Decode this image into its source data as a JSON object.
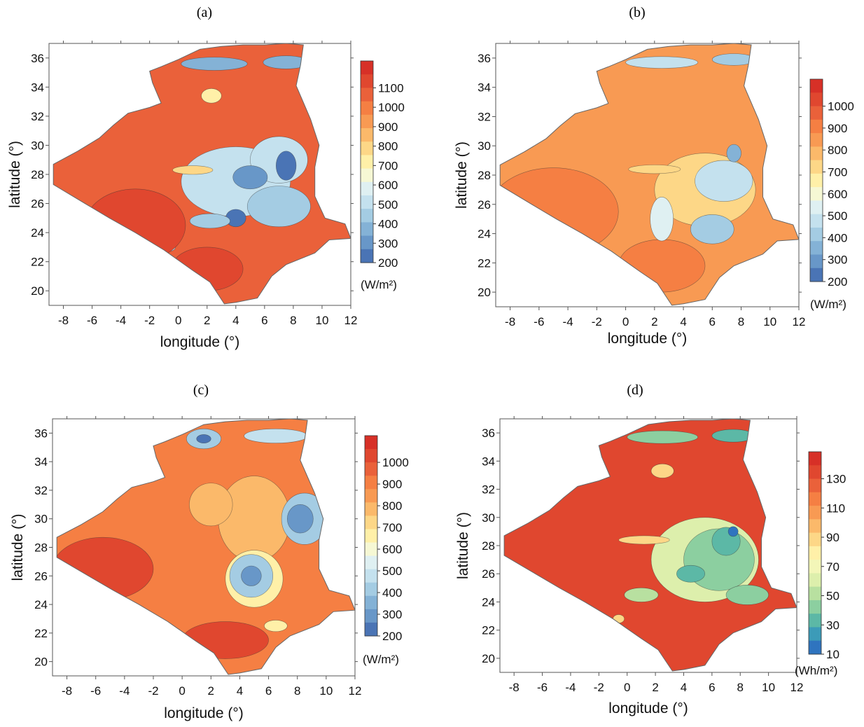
{
  "chart_data": [
    {
      "type": "heatmap",
      "title": "(a)",
      "xlabel": "longitude (°)",
      "ylabel": "latitude (°)",
      "xlim": [
        -9,
        12
      ],
      "ylim": [
        19,
        37
      ],
      "xticks": [
        "-8",
        "-6",
        "-4",
        "-2",
        "0",
        "2",
        "4",
        "6",
        "8",
        "10",
        "12"
      ],
      "yticks": [
        "20",
        "22",
        "24",
        "26",
        "28",
        "30",
        "32",
        "34",
        "36"
      ],
      "colorbar": {
        "unit": "(W/m²)",
        "labels": [
          "1100",
          "1000",
          "900",
          "800",
          "700",
          "600",
          "500",
          "400",
          "300",
          "200"
        ],
        "colors": [
          "#d73027",
          "#e0472f",
          "#ea613a",
          "#f57f43",
          "#f89a53",
          "#fbb96a",
          "#fdd787",
          "#fff0a8",
          "#f6f8d4",
          "#dff0f2",
          "#c4e1ee",
          "#a4ccE3",
          "#84b2d6",
          "#6897c8",
          "#4a74b5"
        ]
      },
      "background": "#ea613a",
      "blobs": [
        {
          "lon": 4.0,
          "lat": 27.5,
          "rx": 3.8,
          "ry": 2.4,
          "color": "#c4e1ee"
        },
        {
          "lon": 7.0,
          "lat": 29.0,
          "rx": 2.0,
          "ry": 1.6,
          "color": "#c4e1ee"
        },
        {
          "lon": 7.0,
          "lat": 25.8,
          "rx": 2.2,
          "ry": 1.4,
          "color": "#a4cce3"
        },
        {
          "lon": 5.0,
          "lat": 27.8,
          "rx": 1.2,
          "ry": 0.8,
          "color": "#6897c8"
        },
        {
          "lon": 7.5,
          "lat": 28.6,
          "rx": 0.7,
          "ry": 1.0,
          "color": "#4a74b5"
        },
        {
          "lon": 4.0,
          "lat": 25.0,
          "rx": 0.7,
          "ry": 0.6,
          "color": "#4a74b5"
        },
        {
          "lon": 2.2,
          "lat": 24.8,
          "rx": 1.4,
          "ry": 0.5,
          "color": "#a4cce3"
        },
        {
          "lon": 1.0,
          "lat": 28.3,
          "rx": 1.4,
          "ry": 0.3,
          "color": "#fdd787"
        },
        {
          "lon": 2.5,
          "lat": 35.6,
          "rx": 2.3,
          "ry": 0.45,
          "color": "#84b2d6"
        },
        {
          "lon": 7.5,
          "lat": 35.7,
          "rx": 1.6,
          "ry": 0.45,
          "color": "#84b2d6"
        },
        {
          "lon": 2.3,
          "lat": 33.4,
          "rx": 0.7,
          "ry": 0.5,
          "color": "#fff0a8"
        },
        {
          "lon": -0.7,
          "lat": 23.0,
          "rx": 0.5,
          "ry": 0.3,
          "color": "#c4e1ee"
        },
        {
          "lon": -3.0,
          "lat": 24.5,
          "rx": 3.5,
          "ry": 2.5,
          "color": "#e0472f"
        },
        {
          "lon": 2.0,
          "lat": 21.5,
          "rx": 2.5,
          "ry": 1.5,
          "color": "#e0472f"
        }
      ]
    },
    {
      "type": "heatmap",
      "title": "(b)",
      "xlabel": "longitude (°)",
      "ylabel": "latitude (°)",
      "xlim": [
        -9,
        12
      ],
      "ylim": [
        19,
        37
      ],
      "xticks": [
        "-8",
        "-6",
        "-4",
        "-2",
        "0",
        "2",
        "4",
        "6",
        "8",
        "10",
        "12"
      ],
      "yticks": [
        "20",
        "22",
        "24",
        "26",
        "28",
        "30",
        "32",
        "34",
        "36"
      ],
      "colorbar": {
        "unit": "(W/m²)",
        "labels": [
          "1000",
          "900",
          "800",
          "700",
          "600",
          "500",
          "400",
          "300",
          "200"
        ],
        "colors": [
          "#d73027",
          "#e0472f",
          "#ea613a",
          "#f57f43",
          "#f89a53",
          "#fbb96a",
          "#fdd787",
          "#fff0a8",
          "#f6f8d4",
          "#dff0f2",
          "#c4e1ee",
          "#a4cce3",
          "#84b2d6",
          "#6897c8",
          "#4a74b5"
        ]
      },
      "background": "#f89a53",
      "blobs": [
        {
          "lon": -5.0,
          "lat": 25.5,
          "rx": 4.5,
          "ry": 3.0,
          "color": "#f57f43"
        },
        {
          "lon": 2.5,
          "lat": 21.8,
          "rx": 3.0,
          "ry": 1.8,
          "color": "#f57f43"
        },
        {
          "lon": 5.5,
          "lat": 27.0,
          "rx": 3.5,
          "ry": 2.5,
          "color": "#fdd787"
        },
        {
          "lon": 6.8,
          "lat": 27.6,
          "rx": 2.0,
          "ry": 1.4,
          "color": "#c4e1ee"
        },
        {
          "lon": 7.5,
          "lat": 29.5,
          "rx": 0.5,
          "ry": 0.6,
          "color": "#84b2d6"
        },
        {
          "lon": 6.0,
          "lat": 24.3,
          "rx": 1.5,
          "ry": 1.0,
          "color": "#a4cce3"
        },
        {
          "lon": 2.5,
          "lat": 25.0,
          "rx": 0.8,
          "ry": 1.5,
          "color": "#dff0f2"
        },
        {
          "lon": 2.5,
          "lat": 35.7,
          "rx": 2.5,
          "ry": 0.4,
          "color": "#c4e1ee"
        },
        {
          "lon": 7.5,
          "lat": 35.9,
          "rx": 1.5,
          "ry": 0.4,
          "color": "#a4cce3"
        },
        {
          "lon": 2.0,
          "lat": 28.4,
          "rx": 1.8,
          "ry": 0.3,
          "color": "#fdd787"
        }
      ]
    },
    {
      "type": "heatmap",
      "title": "(c)",
      "xlabel": "longitude (°)",
      "ylabel": "latitude (°)",
      "xlim": [
        -9,
        12
      ],
      "ylim": [
        19,
        37
      ],
      "xticks": [
        "-8",
        "-6",
        "-4",
        "-2",
        "0",
        "2",
        "4",
        "6",
        "8",
        "10",
        "12"
      ],
      "yticks": [
        "20",
        "22",
        "24",
        "26",
        "28",
        "30",
        "32",
        "34",
        "36"
      ],
      "colorbar": {
        "unit": "(W/m²)",
        "labels": [
          "1000",
          "900",
          "800",
          "700",
          "600",
          "500",
          "400",
          "300",
          "200"
        ],
        "colors": [
          "#d73027",
          "#e0472f",
          "#ea613a",
          "#f57f43",
          "#f89a53",
          "#fbb96a",
          "#fdd787",
          "#fff0a8",
          "#f6f8d4",
          "#dff0f2",
          "#c4e1ee",
          "#a4cce3",
          "#84b2d6",
          "#6897c8",
          "#4a74b5"
        ]
      },
      "background": "#f57f43",
      "blobs": [
        {
          "lon": -5.5,
          "lat": 26.5,
          "rx": 3.5,
          "ry": 2.2,
          "color": "#e0472f"
        },
        {
          "lon": 3.0,
          "lat": 21.5,
          "rx": 3.0,
          "ry": 1.3,
          "color": "#e0472f"
        },
        {
          "lon": 5.0,
          "lat": 30.0,
          "rx": 2.5,
          "ry": 3.0,
          "color": "#fbb96a"
        },
        {
          "lon": 5.0,
          "lat": 25.8,
          "rx": 2.0,
          "ry": 2.0,
          "color": "#fff0a8"
        },
        {
          "lon": 4.8,
          "lat": 26.0,
          "rx": 1.5,
          "ry": 1.5,
          "color": "#a4cce3"
        },
        {
          "lon": 4.8,
          "lat": 26.0,
          "rx": 0.7,
          "ry": 0.7,
          "color": "#6897c8"
        },
        {
          "lon": 8.5,
          "lat": 30.0,
          "rx": 1.6,
          "ry": 1.8,
          "color": "#a4cce3"
        },
        {
          "lon": 8.2,
          "lat": 30.0,
          "rx": 0.9,
          "ry": 1.0,
          "color": "#6897c8"
        },
        {
          "lon": 1.5,
          "lat": 35.6,
          "rx": 1.2,
          "ry": 0.7,
          "color": "#a4cce3"
        },
        {
          "lon": 1.5,
          "lat": 35.6,
          "rx": 0.5,
          "ry": 0.3,
          "color": "#4a74b5"
        },
        {
          "lon": 6.5,
          "lat": 35.8,
          "rx": 2.2,
          "ry": 0.5,
          "color": "#c4e1ee"
        },
        {
          "lon": 6.5,
          "lat": 22.5,
          "rx": 0.8,
          "ry": 0.4,
          "color": "#fff0a8"
        },
        {
          "lon": 2.0,
          "lat": 31.0,
          "rx": 1.5,
          "ry": 1.5,
          "color": "#fbb96a"
        }
      ]
    },
    {
      "type": "heatmap",
      "title": "(d)",
      "xlabel": "longitude (°)",
      "ylabel": "latitude (°)",
      "xlim": [
        -9,
        12
      ],
      "ylim": [
        19,
        37
      ],
      "xticks": [
        "-8",
        "-6",
        "-4",
        "-2",
        "0",
        "2",
        "4",
        "6",
        "8",
        "10",
        "12"
      ],
      "yticks": [
        "20",
        "22",
        "24",
        "26",
        "28",
        "30",
        "32",
        "34",
        "36"
      ],
      "colorbar": {
        "unit": "(Wh/m²)",
        "labels": [
          "130",
          "110",
          "90",
          "70",
          "50",
          "30",
          "10"
        ],
        "colors": [
          "#d73027",
          "#e0472f",
          "#ea613a",
          "#f57f43",
          "#f89a53",
          "#fbb96a",
          "#fdd787",
          "#fff0a8",
          "#f3f6b8",
          "#ddefac",
          "#b8e0a0",
          "#8ccfa0",
          "#5cb8a6",
          "#3c9bb8",
          "#2f74bf"
        ]
      },
      "background": "#e0472f",
      "blobs": [
        {
          "lon": 5.5,
          "lat": 27.0,
          "rx": 3.8,
          "ry": 3.0,
          "color": "#ddefac"
        },
        {
          "lon": 6.5,
          "lat": 27.0,
          "rx": 2.5,
          "ry": 2.2,
          "color": "#8ccfa0"
        },
        {
          "lon": 7.0,
          "lat": 28.3,
          "rx": 1.0,
          "ry": 1.0,
          "color": "#5cb8a6"
        },
        {
          "lon": 7.5,
          "lat": 29.0,
          "rx": 0.35,
          "ry": 0.35,
          "color": "#2f74bf"
        },
        {
          "lon": 4.5,
          "lat": 26.0,
          "rx": 1.0,
          "ry": 0.6,
          "color": "#5cb8a6"
        },
        {
          "lon": 8.5,
          "lat": 24.5,
          "rx": 1.5,
          "ry": 0.7,
          "color": "#8ccfa0"
        },
        {
          "lon": 1.0,
          "lat": 24.5,
          "rx": 1.2,
          "ry": 0.5,
          "color": "#b8e0a0"
        },
        {
          "lon": 1.2,
          "lat": 28.4,
          "rx": 1.8,
          "ry": 0.3,
          "color": "#fdd787"
        },
        {
          "lon": 2.5,
          "lat": 35.7,
          "rx": 2.5,
          "ry": 0.45,
          "color": "#8ccfa0"
        },
        {
          "lon": 7.5,
          "lat": 35.8,
          "rx": 1.5,
          "ry": 0.45,
          "color": "#5cb8a6"
        },
        {
          "lon": 2.5,
          "lat": 33.3,
          "rx": 0.8,
          "ry": 0.5,
          "color": "#fdd787"
        },
        {
          "lon": -0.6,
          "lat": 22.8,
          "rx": 0.4,
          "ry": 0.3,
          "color": "#fdd787"
        }
      ]
    }
  ]
}
